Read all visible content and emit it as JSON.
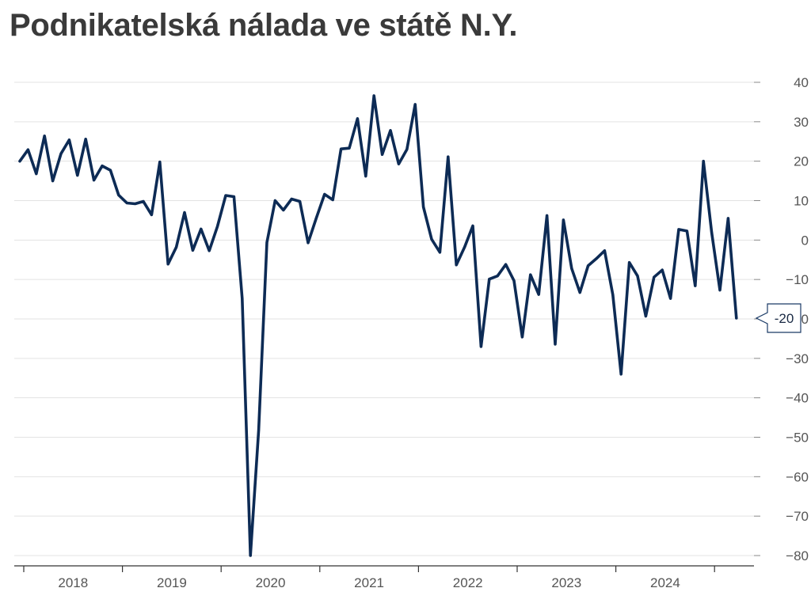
{
  "title": "Podnikatelská nálada ve státě N.Y.",
  "colors": {
    "line": "#0d2b55",
    "grid": "#e3e3e3",
    "axis": "#333333",
    "callout_border": "#1a3a66"
  },
  "chart_data": {
    "type": "line",
    "title": "Podnikatelská nálada ve státě N.Y.",
    "xlabel": "",
    "ylabel": "",
    "ylim": [
      -80,
      40
    ],
    "y_axis_side": "right",
    "yticks": [
      40,
      30,
      20,
      10,
      0,
      -10,
      -20,
      -30,
      -40,
      -50,
      -60,
      -70,
      -80
    ],
    "ytick_labels": [
      "40",
      "30",
      "20",
      "10",
      "0",
      "−10",
      "−20",
      "−30",
      "−40",
      "−50",
      "−60",
      "−70",
      "−80"
    ],
    "x_categories": [
      "2018",
      "2019",
      "2020",
      "2021",
      "2022",
      "2023",
      "2024"
    ],
    "grid": true,
    "last_value_label": "-20",
    "series": [
      {
        "start": "2018-01",
        "values": [
          20.0,
          22.9,
          16.8,
          26.4,
          15.0,
          21.9,
          25.4,
          16.4,
          25.6,
          15.2,
          18.8,
          17.7,
          11.4,
          9.4,
          9.2,
          9.8,
          6.4,
          19.8,
          -6.1,
          -1.8,
          7.0,
          -2.6,
          2.8,
          -2.7,
          3.5,
          11.3,
          11.0,
          -14.8,
          -80.0,
          -48.2,
          -0.6,
          10.0,
          7.6,
          10.4,
          9.8,
          -0.7,
          5.6,
          11.6,
          10.2,
          23.1,
          23.3,
          30.8,
          16.2,
          36.6,
          21.7,
          27.8,
          19.3,
          23.0,
          34.4,
          8.4,
          0.2,
          -3.1,
          21.1,
          -6.3,
          -1.8,
          3.6,
          -27.0,
          -9.9,
          -9.1,
          -6.2,
          -10.3,
          -24.6,
          -8.8,
          -13.8,
          6.2,
          -26.4,
          5.1,
          -7.2,
          -13.3,
          -6.5,
          -4.7,
          -2.7,
          -13.9,
          -34.0,
          -5.7,
          -9.1,
          -19.3,
          -9.4,
          -7.6,
          -14.8,
          2.7,
          2.3,
          -11.6,
          20.0,
          1.9,
          -12.7,
          5.5,
          -19.8
        ]
      }
    ]
  }
}
